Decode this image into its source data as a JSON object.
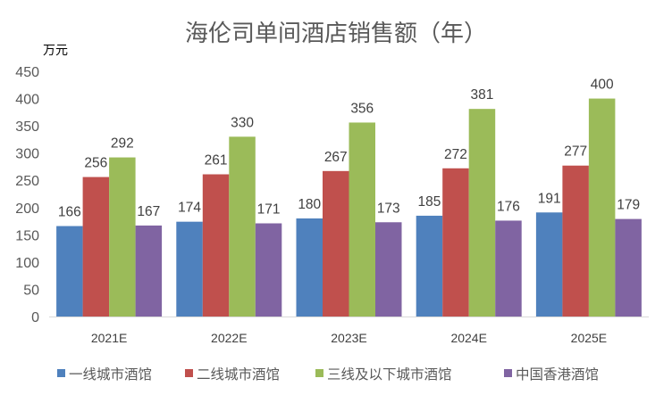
{
  "chart_data": {
    "type": "bar",
    "title": "海伦司单间酒店销售额（年）",
    "ylabel": "万元",
    "xlabel": "",
    "categories": [
      "2021E",
      "2022E",
      "2023E",
      "2024E",
      "2025E"
    ],
    "ylim": [
      0,
      450
    ],
    "yticks": [
      0,
      50,
      100,
      150,
      200,
      250,
      300,
      350,
      400,
      450
    ],
    "grid": false,
    "legend_position": "bottom",
    "series": [
      {
        "name": "一线城市酒馆",
        "color": "#4F81BD",
        "values": [
          166,
          174,
          180,
          185,
          191
        ]
      },
      {
        "name": "二线城市酒馆",
        "color": "#C0504D",
        "values": [
          256,
          261,
          267,
          272,
          277
        ]
      },
      {
        "name": "三线及以下城市酒馆",
        "color": "#9BBB59",
        "values": [
          292,
          330,
          356,
          381,
          400
        ]
      },
      {
        "name": "中国香港酒馆",
        "color": "#8064A2",
        "values": [
          167,
          171,
          173,
          176,
          179
        ]
      }
    ]
  }
}
